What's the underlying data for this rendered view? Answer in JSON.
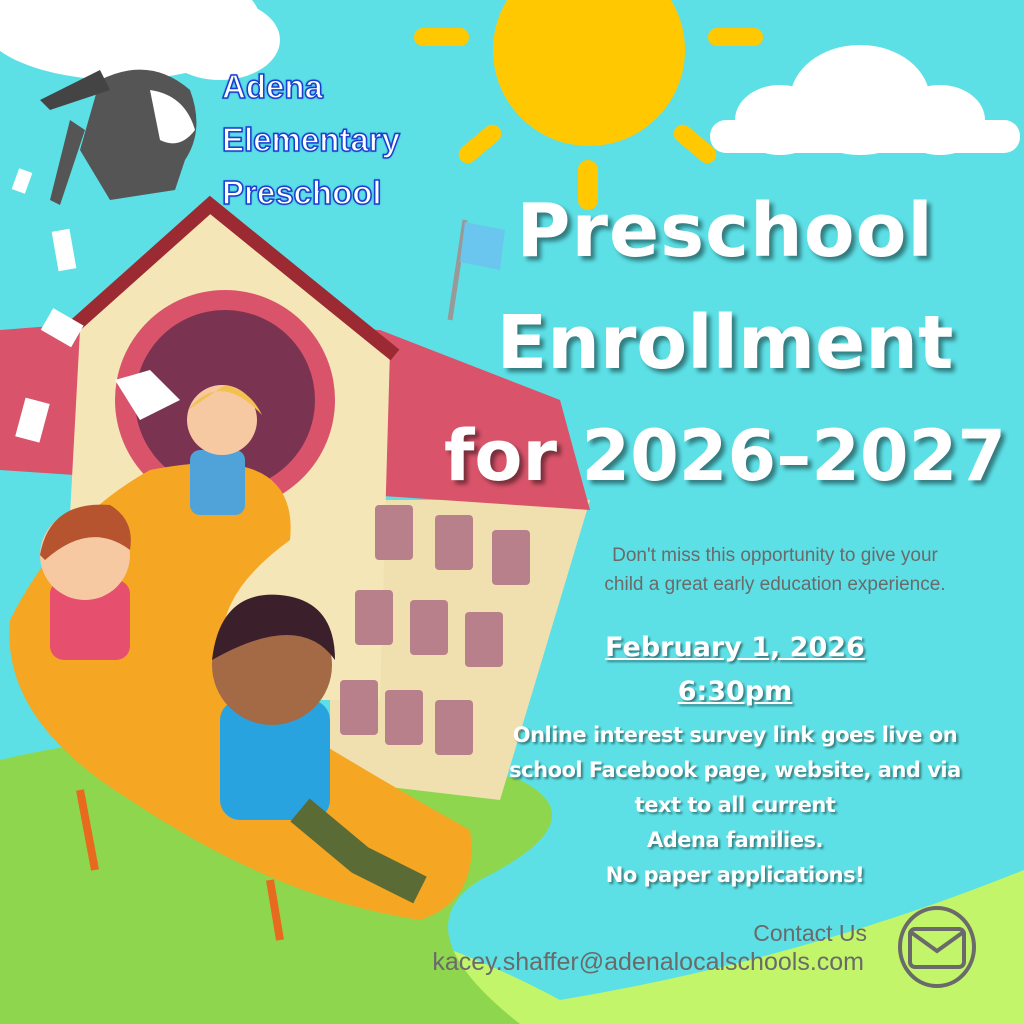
{
  "school_name": [
    "Adena",
    "Elementary",
    "Preschool"
  ],
  "headline": {
    "line1": "Preschool",
    "line2": "Enrollment",
    "line3": "for 2026–2027"
  },
  "tagline": {
    "line1": "Don't miss this opportunity to give your",
    "line2": "child a great early education experience."
  },
  "event": {
    "date": "February 1, 2026",
    "time": "6:30pm",
    "lines": [
      "Online interest survey link goes live on",
      "school Facebook page, website, and via",
      "text to all current",
      "Adena families.",
      "No paper applications!"
    ]
  },
  "contact": {
    "label": "Contact Us",
    "email": "kacey.shaffer@adenalocalschools.com",
    "icon": "envelope-icon"
  },
  "colors": {
    "sky": "#5ce0e6",
    "sun": "#ffc800",
    "school_name": "#1a3fd0",
    "roof": "#d9546a",
    "slide": "#f5a623",
    "grass": "#7ed957"
  }
}
